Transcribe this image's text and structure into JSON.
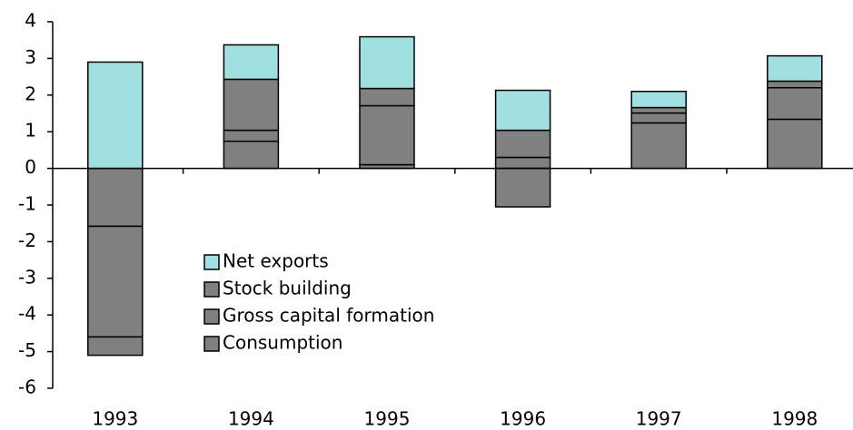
{
  "chart_data": {
    "type": "stacked_bar",
    "categories": [
      "1993",
      "1994",
      "1995",
      "1996",
      "1997",
      "1998"
    ],
    "series": [
      {
        "name": "Consumption",
        "color": "#808080",
        "values": [
          -1.58,
          0.74,
          0.1,
          0.3,
          1.24,
          1.34
        ]
      },
      {
        "name": "Gross capital formation",
        "color": "#808080",
        "values": [
          -3.02,
          0.3,
          1.61,
          0.74,
          0.27,
          0.86
        ]
      },
      {
        "name": "Stock building",
        "color": "#808080",
        "values": [
          -0.5,
          1.39,
          0.47,
          -1.05,
          0.15,
          0.18
        ]
      },
      {
        "name": "Net exports",
        "color": "#a0e0e0",
        "values": [
          2.9,
          0.94,
          1.41,
          1.09,
          0.44,
          0.69
        ]
      }
    ],
    "ylim": [
      -6,
      4
    ],
    "yticks": [
      -6,
      -5,
      -4,
      -3,
      -2,
      -1,
      0,
      1,
      2,
      3,
      4
    ]
  }
}
